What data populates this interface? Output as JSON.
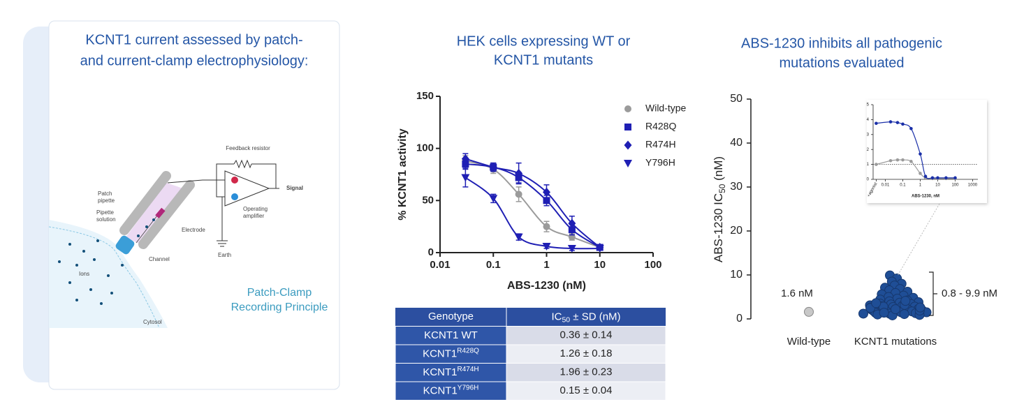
{
  "panel": {
    "title": [
      "KCNT1 current assessed by patch-",
      "and current-clamp electrophysiology:"
    ],
    "diagram": {
      "feedback_resistor": "Feedback resistor",
      "patch_pipette": [
        "Patch",
        "pipette"
      ],
      "pipette_solution": [
        "Pipette",
        "solution"
      ],
      "electrode": "Electrode",
      "signal": "Signal",
      "operating_amplifier": [
        "Operating",
        "amplifier"
      ],
      "channel": "Channel",
      "ions": "Ions",
      "earth": "Earth",
      "cytosol": "Cytosol"
    },
    "caption": [
      "Patch-Clamp",
      "Recording Principle"
    ]
  },
  "chart_data": [
    {
      "type": "line",
      "title": [
        "HEK cells expressing  WT or",
        "KCNT1 mutants"
      ],
      "x_label": "ABS-1230 (nM)",
      "y_label": "% KCNT1 activity",
      "xscale": "log",
      "x": [
        0.03,
        0.1,
        0.3,
        1,
        3,
        10
      ],
      "xlim": [
        0.01,
        100
      ],
      "xticks": [
        0.01,
        0.1,
        1,
        10,
        100
      ],
      "ylim": [
        0,
        150
      ],
      "yticks": [
        0,
        50,
        100,
        150
      ],
      "legend": "top-right",
      "series": [
        {
          "name": "Wild-type",
          "color": "#9b9b9b",
          "marker": "circle",
          "values": [
            88,
            80,
            56,
            25,
            15,
            5
          ],
          "errors": [
            5,
            4,
            7,
            5,
            3,
            2
          ]
        },
        {
          "name": "R428Q",
          "color": "#1f1fb4",
          "marker": "square",
          "values": [
            85,
            82,
            72,
            50,
            22,
            5
          ],
          "errors": [
            5,
            4,
            5,
            5,
            5,
            2
          ]
        },
        {
          "name": "R474H",
          "color": "#1f1fb4",
          "marker": "diamond",
          "values": [
            90,
            82,
            76,
            58,
            28,
            5
          ],
          "errors": [
            5,
            4,
            10,
            7,
            7,
            2
          ]
        },
        {
          "name": "Y796H",
          "color": "#1f1fb4",
          "marker": "triangle-down",
          "values": [
            72,
            52,
            15,
            6,
            4,
            4
          ],
          "errors": [
            9,
            4,
            3,
            2,
            2,
            1
          ]
        }
      ]
    },
    {
      "type": "strip",
      "title": [
        "ABS-1230 inhibits all pathogenic",
        "mutations evaluated"
      ],
      "y_label": {
        "text": "ABS-1230 IC",
        "subscript": "50",
        "rest": " (nM)"
      },
      "categories": [
        "Wild-type",
        "KCNT1 mutations"
      ],
      "colors": [
        "#c8c8c8",
        "#1f4e96"
      ],
      "values": [
        [
          1.6
        ],
        [
          9.9,
          9.2,
          8.5,
          8.0,
          7.6,
          7.1,
          6.8,
          6.5,
          6.2,
          5.9,
          5.6,
          5.3,
          5.0,
          4.8,
          4.6,
          4.4,
          4.2,
          4.0,
          3.8,
          3.7,
          3.5,
          3.4,
          3.3,
          3.1,
          3.0,
          2.9,
          2.8,
          2.7,
          2.6,
          2.5,
          2.4,
          2.3,
          2.2,
          2.1,
          2.0,
          2.0,
          1.9,
          1.8,
          1.8,
          1.7,
          1.6,
          1.5,
          1.5,
          1.4,
          1.3,
          1.2,
          1.2,
          1.1,
          1.0,
          0.9,
          0.8,
          2.5,
          3.2,
          2.8,
          1.9,
          2.2,
          3.6,
          4.1,
          1.4,
          2.6
        ]
      ],
      "annotations": [
        "1.6 nM",
        "0.8 - 9.9 nM"
      ],
      "ylim": [
        0,
        50
      ],
      "yticks": [
        0,
        10,
        20,
        30,
        40,
        50
      ]
    },
    {
      "type": "line",
      "x_label": "ABS-1230, nM",
      "xscale": "log",
      "x": [
        0.003,
        0.02,
        0.05,
        0.1,
        0.3,
        1,
        2,
        5,
        10,
        30,
        100
      ],
      "xlim": [
        0.002,
        2000
      ],
      "xticks": [
        {
          "value": 0.003,
          "label": "+agonist"
        },
        0.01,
        0.1,
        1,
        10,
        100,
        1000
      ],
      "ylim": [
        0,
        5
      ],
      "yticks": [
        0,
        1,
        2,
        3,
        4,
        5
      ],
      "reference_line": 1,
      "series": [
        {
          "color": "#9b9b9b",
          "marker": "circle",
          "values": [
            1.0,
            1.25,
            1.3,
            1.3,
            1.2,
            0.4,
            0.1,
            0.05,
            0.05,
            0.05,
            0.05
          ]
        },
        {
          "color": "#1a2fa8",
          "marker": "circle",
          "values": [
            3.75,
            3.85,
            3.8,
            3.7,
            3.4,
            1.7,
            0.2,
            0.1,
            0.1,
            0.1,
            0.1
          ]
        }
      ]
    }
  ],
  "table": {
    "header": [
      "Genotype",
      {
        "text": "IC",
        "subscript": "50",
        "rest": " ± SD (nM)"
      }
    ],
    "rows": [
      [
        {
          "name": "KCNT1 WT"
        },
        "0.36 ± 0.14"
      ],
      [
        {
          "name": "KCNT1",
          "superscript": "R428Q"
        },
        "1.26 ± 0.18"
      ],
      [
        {
          "name": "KCNT1",
          "superscript": "R474H"
        },
        "1.96 ± 0.23"
      ],
      [
        {
          "name": "KCNT1",
          "superscript": "Y796H"
        },
        "0.15 ± 0.04"
      ]
    ]
  }
}
